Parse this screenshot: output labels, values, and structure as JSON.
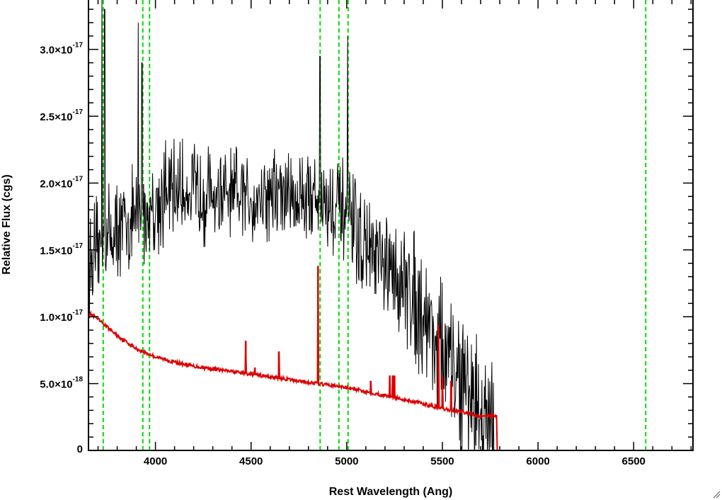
{
  "chart_data": {
    "type": "line",
    "title": "",
    "xlabel": "Rest Wavelength (Ang)",
    "ylabel": "Relative Flux (cgs)",
    "xlim": [
      3650,
      6810
    ],
    "ylim": [
      0,
      3.38e-17
    ],
    "grid": false,
    "legend": "none",
    "x_ticks": [
      {
        "value": 4000,
        "label": "4000"
      },
      {
        "value": 4500,
        "label": "4500"
      },
      {
        "value": 5000,
        "label": "5000"
      },
      {
        "value": 5500,
        "label": "5500"
      },
      {
        "value": 6000,
        "label": "6000"
      },
      {
        "value": 6500,
        "label": "6500"
      }
    ],
    "y_ticks": [
      {
        "value": 0,
        "mantissa": "0",
        "exponent": ""
      },
      {
        "value": 5e-18,
        "mantissa": "5.0×10",
        "exponent": "-18"
      },
      {
        "value": 1e-17,
        "mantissa": "1.0×10",
        "exponent": "-17"
      },
      {
        "value": 1.5e-17,
        "mantissa": "1.5×10",
        "exponent": "-17"
      },
      {
        "value": 2e-17,
        "mantissa": "2.0×10",
        "exponent": "-17"
      },
      {
        "value": 2.5e-17,
        "mantissa": "2.5×10",
        "exponent": "-17"
      },
      {
        "value": 3e-17,
        "mantissa": "3.0×10",
        "exponent": "-17"
      }
    ],
    "series": [
      {
        "color": "#000000",
        "style": "noisy spectrum",
        "anchors": [
          [
            3650,
            1.4e-17
          ],
          [
            3700,
            1.5e-17
          ],
          [
            3750,
            1.6e-17
          ],
          [
            3800,
            1.65e-17
          ],
          [
            3850,
            1.7e-17
          ],
          [
            3900,
            1.75e-17
          ],
          [
            3950,
            1.75e-17
          ],
          [
            4000,
            1.85e-17
          ],
          [
            4100,
            1.95e-17
          ],
          [
            4200,
            1.95e-17
          ],
          [
            4300,
            1.9e-17
          ],
          [
            4400,
            1.88e-17
          ],
          [
            4500,
            1.9e-17
          ],
          [
            4600,
            1.92e-17
          ],
          [
            4700,
            1.9e-17
          ],
          [
            4800,
            1.92e-17
          ],
          [
            4900,
            1.85e-17
          ],
          [
            5000,
            1.75e-17
          ],
          [
            5100,
            1.5e-17
          ],
          [
            5200,
            1.35e-17
          ],
          [
            5300,
            1.25e-17
          ],
          [
            5400,
            1.05e-17
          ],
          [
            5500,
            7.5e-18
          ],
          [
            5600,
            5e-18
          ],
          [
            5700,
            3e-18
          ],
          [
            5775,
            1e-18
          ]
        ],
        "noise_amplitude": 4.5e-18,
        "spikes": [
          [
            3720,
            3.38e-17
          ],
          [
            3735,
            3.3e-17
          ],
          [
            3910,
            3.2e-17
          ],
          [
            3930,
            2.9e-17
          ],
          [
            4860,
            2.95e-17
          ],
          [
            5005,
            3.1e-17
          ]
        ]
      },
      {
        "color": "#dd0000",
        "style": "model",
        "anchors": [
          [
            3650,
            1.03e-17
          ],
          [
            3700,
            9.8e-18
          ],
          [
            3800,
            8.6e-18
          ],
          [
            3900,
            7.6e-18
          ],
          [
            4000,
            7e-18
          ],
          [
            4100,
            6.6e-18
          ],
          [
            4200,
            6.3e-18
          ],
          [
            4300,
            6.1e-18
          ],
          [
            4400,
            5.9e-18
          ],
          [
            4500,
            5.7e-18
          ],
          [
            4600,
            5.5e-18
          ],
          [
            4700,
            5.3e-18
          ],
          [
            4800,
            5.1e-18
          ],
          [
            4900,
            4.9e-18
          ],
          [
            5000,
            4.7e-18
          ],
          [
            5100,
            4.4e-18
          ],
          [
            5200,
            4.1e-18
          ],
          [
            5300,
            3.8e-18
          ],
          [
            5400,
            3.5e-18
          ],
          [
            5500,
            3.1e-18
          ],
          [
            5600,
            2.9e-18
          ],
          [
            5700,
            2.6e-18
          ],
          [
            5785,
            2.6e-18
          ],
          [
            5787,
            0
          ],
          [
            6810,
            0
          ]
        ],
        "emission_lines": [
          [
            4472,
            8.2e-18
          ],
          [
            4520,
            6.2e-18
          ],
          [
            4645,
            7.4e-18
          ],
          [
            4850,
            1.38e-17
          ],
          [
            5125,
            5.2e-18
          ],
          [
            5225,
            5.6e-18
          ],
          [
            5240,
            5.6e-18
          ],
          [
            5250,
            5.6e-18
          ],
          [
            5480,
            9.4e-18
          ],
          [
            5500,
            5.5e-18
          ],
          [
            5545,
            5.2e-18
          ]
        ]
      }
    ],
    "vertical_lines": {
      "color": "#00dd00",
      "style": "dashed",
      "x": [
        3727,
        3934,
        3969,
        4861,
        4959,
        5007,
        6563
      ]
    }
  }
}
